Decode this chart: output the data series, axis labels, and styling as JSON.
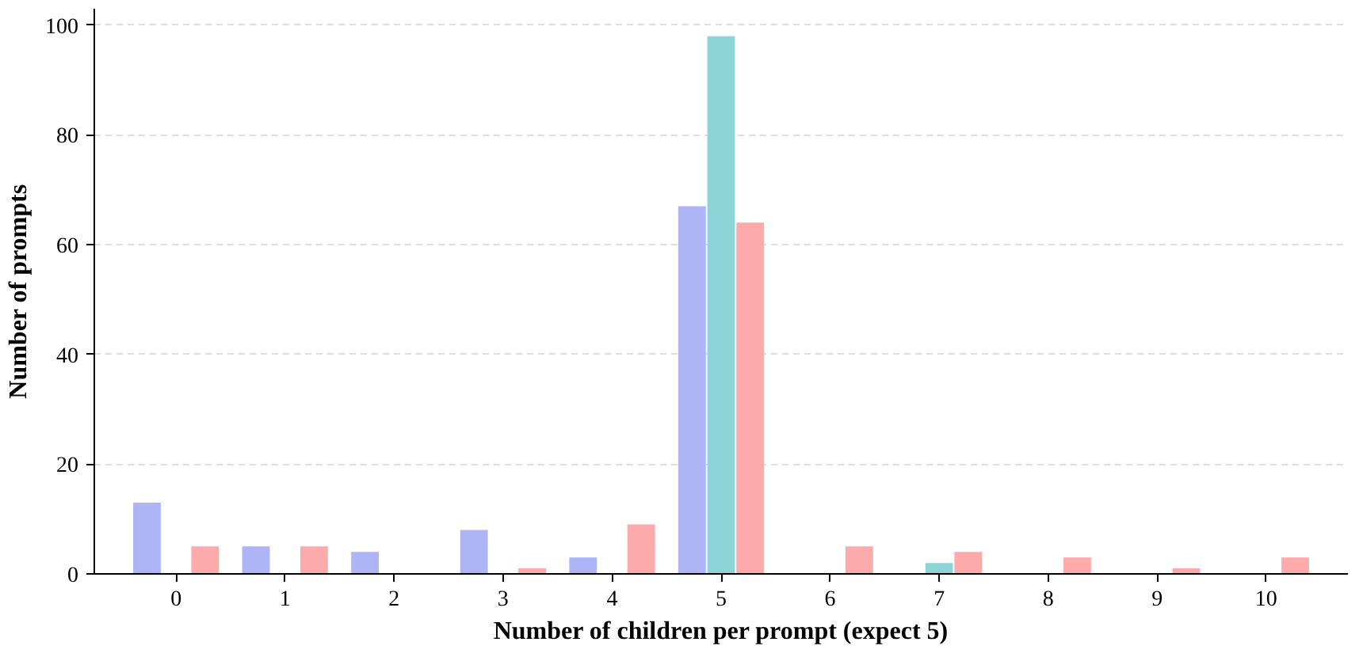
{
  "chart_data": {
    "type": "bar",
    "xlabel": "Number of children per prompt (expect 5)",
    "ylabel": "Number of prompts",
    "categories": [
      "0",
      "1",
      "2",
      "3",
      "4",
      "5",
      "6",
      "7",
      "8",
      "9",
      "10"
    ],
    "series": [
      {
        "color": "#adb5f7",
        "values": [
          13,
          5,
          4,
          8,
          3,
          67,
          0,
          0,
          0,
          0,
          0
        ]
      },
      {
        "color": "#8dd4d9",
        "values": [
          0,
          0,
          0,
          0,
          0,
          98,
          0,
          2,
          0,
          0,
          0
        ]
      },
      {
        "color": "#fcaaaa",
        "values": [
          5,
          5,
          0,
          1,
          9,
          64,
          5,
          4,
          3,
          1,
          3
        ]
      }
    ],
    "ylim": [
      0,
      103
    ],
    "yticks": [
      0,
      20,
      40,
      60,
      80,
      100
    ],
    "grid": "y"
  }
}
